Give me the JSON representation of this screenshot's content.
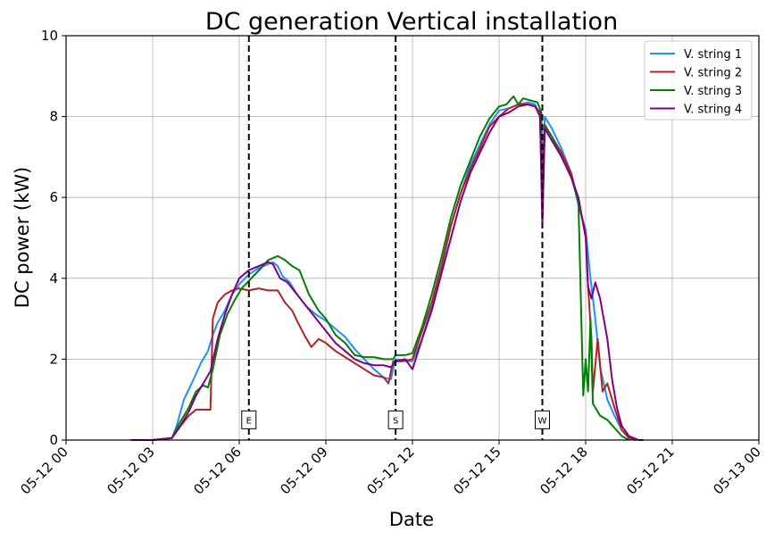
{
  "chart_data": {
    "type": "line",
    "title": "DC generation Vertical installation",
    "xlabel": "Date",
    "ylabel": "DC power (kW)",
    "xlim": [
      "05-12 00:00",
      "05-13 00:00"
    ],
    "ylim": [
      0,
      10
    ],
    "grid": true,
    "legend_position": "top-right",
    "x_ticks": [
      "05-12 00",
      "05-12 03",
      "05-12 06",
      "05-12 09",
      "05-12 12",
      "05-12 15",
      "05-12 18",
      "05-12 21",
      "05-13 00"
    ],
    "y_ticks": [
      "0",
      "2",
      "4",
      "6",
      "8",
      "10"
    ],
    "markers": [
      {
        "label": "E",
        "time": "05-12 06:20"
      },
      {
        "label": "S",
        "time": "05-12 11:25"
      },
      {
        "label": "W",
        "time": "05-12 16:30"
      }
    ],
    "series": [
      {
        "name": "V. string 1",
        "color": "#1e90ff",
        "points": [
          [
            "05-12 02:15",
            0
          ],
          [
            "05-12 03:00",
            0
          ],
          [
            "05-12 03:40",
            0.05
          ],
          [
            "05-12 03:50",
            0.35
          ],
          [
            "05-12 04:05",
            1.0
          ],
          [
            "05-12 04:25",
            1.5
          ],
          [
            "05-12 04:40",
            1.9
          ],
          [
            "05-12 04:55",
            2.2
          ],
          [
            "05-12 05:05",
            2.6
          ],
          [
            "05-12 05:15",
            2.9
          ],
          [
            "05-12 05:30",
            3.2
          ],
          [
            "05-12 05:45",
            3.6
          ],
          [
            "05-12 06:00",
            3.85
          ],
          [
            "05-12 06:20",
            4.1
          ],
          [
            "05-12 06:40",
            4.25
          ],
          [
            "05-12 07:00",
            4.35
          ],
          [
            "05-12 07:10",
            4.4
          ],
          [
            "05-12 07:20",
            4.3
          ],
          [
            "05-12 07:30",
            4.05
          ],
          [
            "05-12 07:45",
            3.9
          ],
          [
            "05-12 08:00",
            3.6
          ],
          [
            "05-12 08:20",
            3.3
          ],
          [
            "05-12 08:40",
            3.1
          ],
          [
            "05-12 09:00",
            2.95
          ],
          [
            "05-12 09:20",
            2.75
          ],
          [
            "05-12 09:40",
            2.55
          ],
          [
            "05-12 10:00",
            2.25
          ],
          [
            "05-12 10:20",
            2.0
          ],
          [
            "05-12 10:40",
            1.75
          ],
          [
            "05-12 11:00",
            1.55
          ],
          [
            "05-12 11:15",
            1.5
          ],
          [
            "05-12 11:25",
            2.0
          ],
          [
            "05-12 11:45",
            1.95
          ],
          [
            "05-12 12:00",
            1.95
          ],
          [
            "05-12 12:20",
            2.5
          ],
          [
            "05-12 12:40",
            3.3
          ],
          [
            "05-12 13:00",
            4.2
          ],
          [
            "05-12 13:20",
            5.3
          ],
          [
            "05-12 13:40",
            6.1
          ],
          [
            "05-12 14:00",
            6.8
          ],
          [
            "05-12 14:20",
            7.3
          ],
          [
            "05-12 14:40",
            7.8
          ],
          [
            "05-12 15:00",
            8.15
          ],
          [
            "05-12 15:20",
            8.2
          ],
          [
            "05-12 15:40",
            8.3
          ],
          [
            "05-12 16:00",
            8.35
          ],
          [
            "05-12 16:15",
            8.3
          ],
          [
            "05-12 16:25",
            8.0
          ],
          [
            "05-12 16:30",
            6.5
          ],
          [
            "05-12 16:35",
            8.0
          ],
          [
            "05-12 16:50",
            7.7
          ],
          [
            "05-12 17:10",
            7.2
          ],
          [
            "05-12 17:30",
            6.6
          ],
          [
            "05-12 17:45",
            5.8
          ],
          [
            "05-12 18:00",
            5.2
          ],
          [
            "05-12 18:10",
            4.0
          ],
          [
            "05-12 18:20",
            3.0
          ],
          [
            "05-12 18:30",
            1.8
          ],
          [
            "05-12 18:45",
            1.0
          ],
          [
            "05-12 19:00",
            0.6
          ],
          [
            "05-12 19:15",
            0.25
          ],
          [
            "05-12 19:30",
            0.05
          ],
          [
            "05-12 19:45",
            0
          ]
        ]
      },
      {
        "name": "V. string 2",
        "color": "#b22222",
        "points": [
          [
            "05-12 02:15",
            0
          ],
          [
            "05-12 03:00",
            0
          ],
          [
            "05-12 03:40",
            0.05
          ],
          [
            "05-12 03:55",
            0.3
          ],
          [
            "05-12 04:15",
            0.6
          ],
          [
            "05-12 04:30",
            0.75
          ],
          [
            "05-12 05:00",
            0.75
          ],
          [
            "05-12 05:05",
            3.0
          ],
          [
            "05-12 05:15",
            3.4
          ],
          [
            "05-12 05:30",
            3.6
          ],
          [
            "05-12 05:45",
            3.7
          ],
          [
            "05-12 06:00",
            3.75
          ],
          [
            "05-12 06:20",
            3.7
          ],
          [
            "05-12 06:40",
            3.75
          ],
          [
            "05-12 07:00",
            3.7
          ],
          [
            "05-12 07:20",
            3.7
          ],
          [
            "05-12 07:35",
            3.4
          ],
          [
            "05-12 07:50",
            3.2
          ],
          [
            "05-12 08:00",
            2.95
          ],
          [
            "05-12 08:15",
            2.6
          ],
          [
            "05-12 08:30",
            2.3
          ],
          [
            "05-12 08:45",
            2.5
          ],
          [
            "05-12 09:00",
            2.4
          ],
          [
            "05-12 09:20",
            2.2
          ],
          [
            "05-12 09:40",
            2.05
          ],
          [
            "05-12 10:00",
            1.9
          ],
          [
            "05-12 10:20",
            1.75
          ],
          [
            "05-12 10:40",
            1.6
          ],
          [
            "05-12 11:00",
            1.55
          ],
          [
            "05-12 11:10",
            1.4
          ],
          [
            "05-12 11:20",
            1.95
          ],
          [
            "05-12 11:40",
            1.95
          ],
          [
            "05-12 12:00",
            2.0
          ],
          [
            "05-12 12:20",
            2.7
          ],
          [
            "05-12 12:40",
            3.4
          ],
          [
            "05-12 13:00",
            4.3
          ],
          [
            "05-12 13:20",
            5.3
          ],
          [
            "05-12 13:40",
            6.1
          ],
          [
            "05-12 14:00",
            6.7
          ],
          [
            "05-12 14:20",
            7.2
          ],
          [
            "05-12 14:40",
            7.75
          ],
          [
            "05-12 15:00",
            8.0
          ],
          [
            "05-12 15:20",
            8.2
          ],
          [
            "05-12 15:40",
            8.3
          ],
          [
            "05-12 16:00",
            8.3
          ],
          [
            "05-12 16:15",
            8.25
          ],
          [
            "05-12 16:25",
            8.0
          ],
          [
            "05-12 16:30",
            6.0
          ],
          [
            "05-12 16:35",
            7.8
          ],
          [
            "05-12 16:50",
            7.5
          ],
          [
            "05-12 17:10",
            7.1
          ],
          [
            "05-12 17:30",
            6.6
          ],
          [
            "05-12 17:45",
            5.9
          ],
          [
            "05-12 18:00",
            5.1
          ],
          [
            "05-12 18:05",
            3.8
          ],
          [
            "05-12 18:12",
            2.5
          ],
          [
            "05-12 18:15",
            1.2
          ],
          [
            "05-12 18:25",
            2.5
          ],
          [
            "05-12 18:35",
            1.2
          ],
          [
            "05-12 18:45",
            1.4
          ],
          [
            "05-12 19:00",
            0.8
          ],
          [
            "05-12 19:15",
            0.25
          ],
          [
            "05-12 19:30",
            0.05
          ],
          [
            "05-12 19:45",
            0
          ]
        ]
      },
      {
        "name": "V. string 3",
        "color": "#008000",
        "points": [
          [
            "05-12 02:15",
            0
          ],
          [
            "05-12 03:00",
            0
          ],
          [
            "05-12 03:40",
            0.05
          ],
          [
            "05-12 03:55",
            0.4
          ],
          [
            "05-12 04:15",
            0.8
          ],
          [
            "05-12 04:30",
            1.2
          ],
          [
            "05-12 04:45",
            1.35
          ],
          [
            "05-12 04:55",
            1.3
          ],
          [
            "05-12 05:05",
            1.75
          ],
          [
            "05-12 05:20",
            2.6
          ],
          [
            "05-12 05:35",
            3.1
          ],
          [
            "05-12 05:50",
            3.45
          ],
          [
            "05-12 06:05",
            3.75
          ],
          [
            "05-12 06:25",
            4.0
          ],
          [
            "05-12 06:45",
            4.25
          ],
          [
            "05-12 07:00",
            4.45
          ],
          [
            "05-12 07:20",
            4.55
          ],
          [
            "05-12 07:35",
            4.45
          ],
          [
            "05-12 07:50",
            4.3
          ],
          [
            "05-12 08:05",
            4.2
          ],
          [
            "05-12 08:25",
            3.6
          ],
          [
            "05-12 08:45",
            3.2
          ],
          [
            "05-12 09:00",
            3.0
          ],
          [
            "05-12 09:20",
            2.6
          ],
          [
            "05-12 09:40",
            2.4
          ],
          [
            "05-12 10:00",
            2.1
          ],
          [
            "05-12 10:20",
            2.05
          ],
          [
            "05-12 10:40",
            2.05
          ],
          [
            "05-12 11:00",
            2.0
          ],
          [
            "05-12 11:20",
            2.0
          ],
          [
            "05-12 11:25",
            2.1
          ],
          [
            "05-12 11:45",
            2.1
          ],
          [
            "05-12 12:00",
            2.15
          ],
          [
            "05-12 12:20",
            2.8
          ],
          [
            "05-12 12:40",
            3.6
          ],
          [
            "05-12 13:00",
            4.5
          ],
          [
            "05-12 13:20",
            5.5
          ],
          [
            "05-12 13:40",
            6.3
          ],
          [
            "05-12 14:00",
            6.9
          ],
          [
            "05-12 14:20",
            7.5
          ],
          [
            "05-12 14:40",
            7.95
          ],
          [
            "05-12 15:00",
            8.25
          ],
          [
            "05-12 15:15",
            8.3
          ],
          [
            "05-12 15:30",
            8.5
          ],
          [
            "05-12 15:40",
            8.3
          ],
          [
            "05-12 15:50",
            8.45
          ],
          [
            "05-12 16:05",
            8.4
          ],
          [
            "05-12 16:20",
            8.35
          ],
          [
            "05-12 16:28",
            8.1
          ],
          [
            "05-12 16:30",
            5.5
          ],
          [
            "05-12 16:35",
            7.75
          ],
          [
            "05-12 16:50",
            7.5
          ],
          [
            "05-12 17:10",
            7.0
          ],
          [
            "05-12 17:30",
            6.5
          ],
          [
            "05-12 17:45",
            5.9
          ],
          [
            "05-12 17:50",
            3.5
          ],
          [
            "05-12 17:55",
            1.1
          ],
          [
            "05-12 18:00",
            2.0
          ],
          [
            "05-12 18:05",
            1.2
          ],
          [
            "05-12 18:10",
            3.0
          ],
          [
            "05-12 18:15",
            0.9
          ],
          [
            "05-12 18:30",
            0.6
          ],
          [
            "05-12 18:45",
            0.5
          ],
          [
            "05-12 19:00",
            0.3
          ],
          [
            "05-12 19:15",
            0.1
          ],
          [
            "05-12 19:30",
            0
          ]
        ]
      },
      {
        "name": "V. string 4",
        "color": "#800080",
        "points": [
          [
            "05-12 02:15",
            0
          ],
          [
            "05-12 03:00",
            0
          ],
          [
            "05-12 03:40",
            0.05
          ],
          [
            "05-12 03:55",
            0.3
          ],
          [
            "05-12 04:15",
            0.7
          ],
          [
            "05-12 04:30",
            1.1
          ],
          [
            "05-12 04:45",
            1.4
          ],
          [
            "05-12 05:00",
            1.7
          ],
          [
            "05-12 05:15",
            2.5
          ],
          [
            "05-12 05:30",
            3.1
          ],
          [
            "05-12 05:45",
            3.6
          ],
          [
            "05-12 06:00",
            4.0
          ],
          [
            "05-12 06:20",
            4.2
          ],
          [
            "05-12 06:40",
            4.3
          ],
          [
            "05-12 07:00",
            4.4
          ],
          [
            "05-12 07:10",
            4.35
          ],
          [
            "05-12 07:25",
            4.0
          ],
          [
            "05-12 07:40",
            3.9
          ],
          [
            "05-12 08:00",
            3.6
          ],
          [
            "05-12 08:20",
            3.3
          ],
          [
            "05-12 08:40",
            3.0
          ],
          [
            "05-12 09:00",
            2.7
          ],
          [
            "05-12 09:20",
            2.4
          ],
          [
            "05-12 09:40",
            2.2
          ],
          [
            "05-12 10:00",
            2.0
          ],
          [
            "05-12 10:20",
            1.9
          ],
          [
            "05-12 10:40",
            1.85
          ],
          [
            "05-12 11:00",
            1.85
          ],
          [
            "05-12 11:15",
            1.8
          ],
          [
            "05-12 11:25",
            1.95
          ],
          [
            "05-12 11:45",
            2.0
          ],
          [
            "05-12 12:00",
            1.75
          ],
          [
            "05-12 12:20",
            2.5
          ],
          [
            "05-12 12:40",
            3.2
          ],
          [
            "05-12 13:00",
            4.1
          ],
          [
            "05-12 13:20",
            5.0
          ],
          [
            "05-12 13:40",
            5.9
          ],
          [
            "05-12 14:00",
            6.6
          ],
          [
            "05-12 14:20",
            7.1
          ],
          [
            "05-12 14:40",
            7.6
          ],
          [
            "05-12 15:00",
            8.0
          ],
          [
            "05-12 15:20",
            8.1
          ],
          [
            "05-12 15:40",
            8.25
          ],
          [
            "05-12 16:00",
            8.3
          ],
          [
            "05-12 16:15",
            8.25
          ],
          [
            "05-12 16:25",
            8.1
          ],
          [
            "05-12 16:30",
            5.3
          ],
          [
            "05-12 16:35",
            7.7
          ],
          [
            "05-12 16:50",
            7.4
          ],
          [
            "05-12 17:10",
            7.0
          ],
          [
            "05-12 17:30",
            6.5
          ],
          [
            "05-12 17:45",
            6.0
          ],
          [
            "05-12 18:00",
            5.0
          ],
          [
            "05-12 18:05",
            3.8
          ],
          [
            "05-12 18:12",
            3.5
          ],
          [
            "05-12 18:20",
            3.9
          ],
          [
            "05-12 18:30",
            3.5
          ],
          [
            "05-12 18:45",
            2.5
          ],
          [
            "05-12 18:55",
            1.5
          ],
          [
            "05-12 19:05",
            0.8
          ],
          [
            "05-12 19:15",
            0.35
          ],
          [
            "05-12 19:30",
            0.1
          ],
          [
            "05-12 19:50",
            0
          ],
          [
            "05-12 20:00",
            0
          ]
        ]
      }
    ]
  }
}
